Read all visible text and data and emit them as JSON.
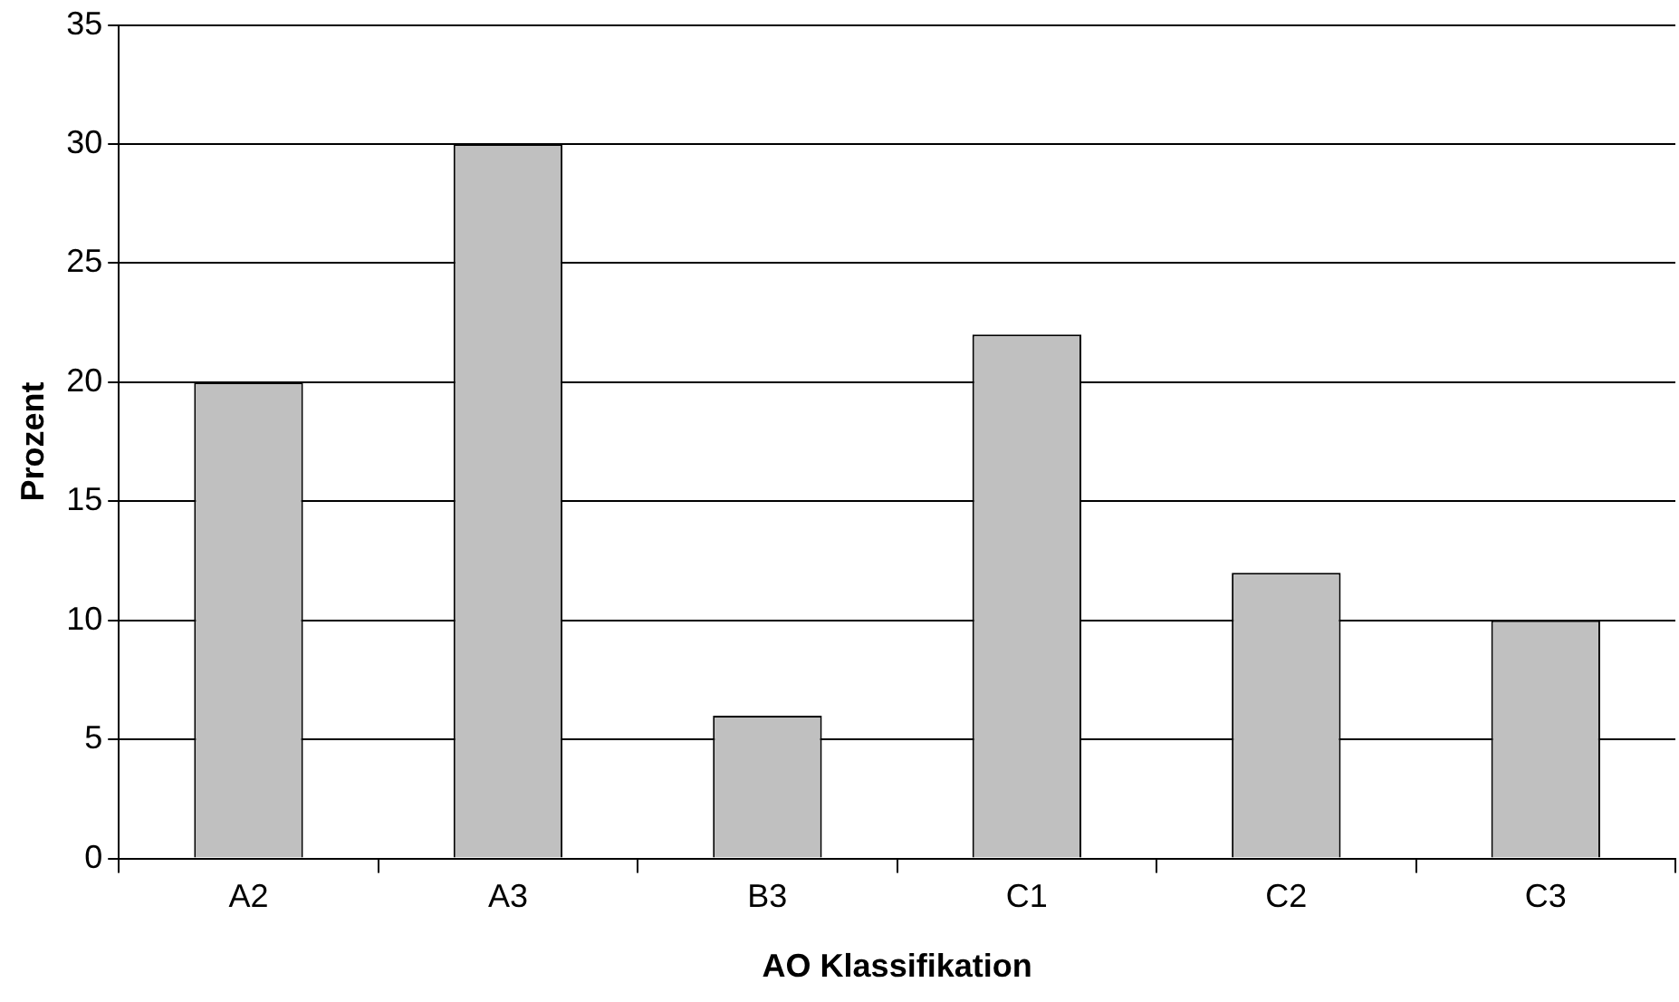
{
  "chart_data": {
    "type": "bar",
    "xlabel": "AO Klassifikation",
    "ylabel": "Prozent",
    "categories": [
      "A2",
      "A3",
      "B3",
      "C1",
      "C2",
      "C3"
    ],
    "values": [
      20,
      30,
      6,
      22,
      12,
      10
    ],
    "color": "#c0c0c0",
    "ylim": [
      0,
      35
    ],
    "yticks": [
      0,
      5,
      10,
      15,
      20,
      25,
      30,
      35
    ],
    "grid": "y"
  }
}
